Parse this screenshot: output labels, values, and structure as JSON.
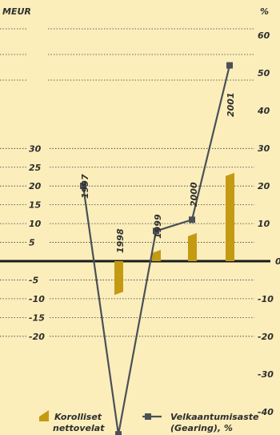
{
  "chart_data": {
    "type": "bar",
    "categories": [
      "1997",
      "1998",
      "1999",
      "2000",
      "2001"
    ],
    "series": [
      {
        "name": "Korolliset nettovelat",
        "axis": "left",
        "mark": "bar",
        "values": [
          0,
          -9,
          3,
          7.5,
          23.5
        ]
      },
      {
        "name": "Velkaantumisaste (Gearing), %",
        "axis": "right",
        "mark": "line",
        "values": [
          20,
          -46,
          8,
          11,
          52
        ]
      }
    ],
    "y_left": {
      "label": "MEUR",
      "ticks": [
        30,
        25,
        20,
        15,
        10,
        5,
        -5,
        -10,
        -15,
        -20
      ]
    },
    "y_right": {
      "label": "%",
      "ticks": [
        60,
        50,
        40,
        30,
        20,
        10,
        0,
        -10,
        -20,
        -30,
        -40
      ]
    },
    "colors": {
      "bar": "#c49a12",
      "line": "#4a5056",
      "background": "#fbeebb",
      "zero_line": "#1a1a1a",
      "grid": "#3a3a3a"
    },
    "legend": {
      "position": "bottom",
      "bar_label_line1": "Korolliset",
      "bar_label_line2": "nettovelat",
      "line_label_line1": "Velkaantumisaste",
      "line_label_line2": "(Gearing), %"
    },
    "grid": true
  }
}
